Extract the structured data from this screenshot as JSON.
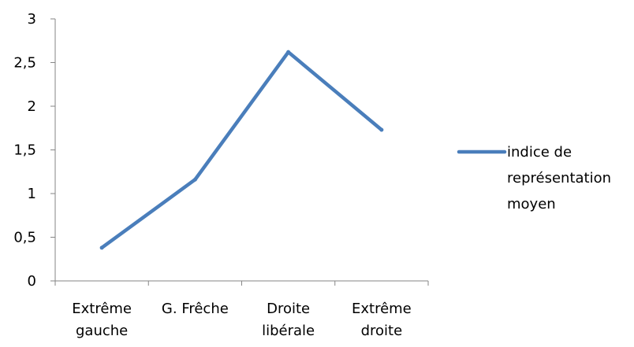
{
  "chart_data": {
    "type": "line",
    "categories": [
      [
        "Extrême",
        "gauche"
      ],
      [
        "G. Frêche"
      ],
      [
        "Droite",
        "libérale"
      ],
      [
        "Extrême",
        "droite"
      ]
    ],
    "series": [
      {
        "name": "indice de représentation moyen",
        "values": [
          0.38,
          1.16,
          2.62,
          1.73
        ],
        "color": "#4a7ebb"
      }
    ],
    "legend_lines": [
      "indice de",
      "représentation",
      "moyen"
    ],
    "ylim": [
      0,
      3
    ],
    "yticks": [
      0,
      0.5,
      1,
      1.5,
      2,
      2.5,
      3
    ],
    "ytick_labels": [
      "0",
      "0,5",
      "1",
      "1,5",
      "2",
      "2,5",
      "3"
    ],
    "grid": false,
    "legend_position": "right",
    "title": "",
    "xlabel": "",
    "ylabel": "",
    "axis_color": "#868686"
  }
}
